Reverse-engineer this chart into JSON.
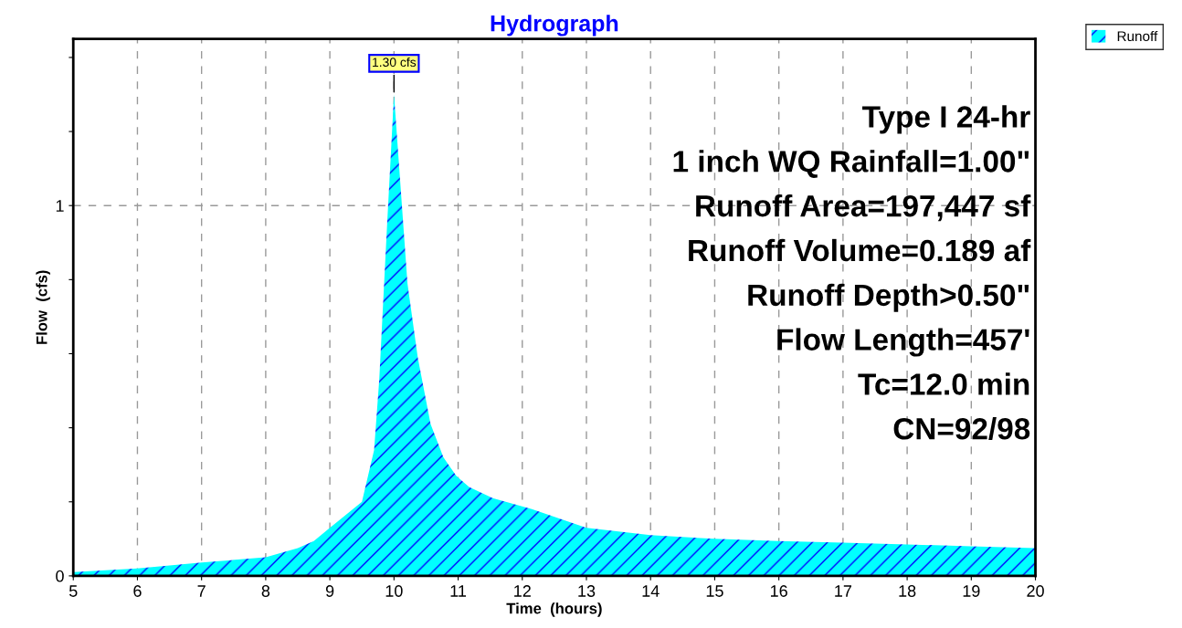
{
  "chart_data": {
    "type": "area",
    "title": "Hydrograph",
    "xlabel": "Time  (hours)",
    "ylabel": "Flow  (cfs)",
    "x": [
      5,
      6,
      7,
      8,
      8.5,
      8.75,
      9,
      9.36,
      9.5,
      9.69,
      9.77,
      9.89,
      10.0,
      10.21,
      10.37,
      10.57,
      10.77,
      10.97,
      11.17,
      11.54,
      12.15,
      13,
      14,
      15,
      16,
      17,
      18,
      19,
      20
    ],
    "series": [
      {
        "name": "Runoff",
        "color": "#00ffff",
        "values": [
          0.01,
          0.02,
          0.036,
          0.05,
          0.075,
          0.094,
          0.13,
          0.18,
          0.2,
          0.34,
          0.53,
          0.94,
          1.3,
          0.79,
          0.59,
          0.41,
          0.32,
          0.27,
          0.24,
          0.21,
          0.18,
          0.13,
          0.11,
          0.1,
          0.094,
          0.09,
          0.085,
          0.08,
          0.075
        ]
      }
    ],
    "xlim": [
      5,
      20
    ],
    "ylim": [
      0,
      1.45
    ],
    "xticks": [
      5,
      6,
      7,
      8,
      9,
      10,
      11,
      12,
      13,
      14,
      15,
      16,
      17,
      18,
      19,
      20
    ],
    "yticks": [
      0,
      {
        "value": 0.2,
        "label": null
      },
      {
        "value": 0.4,
        "label": null
      },
      {
        "value": 0.6,
        "label": null
      },
      {
        "value": 0.8,
        "label": null
      },
      1,
      {
        "value": 1.2,
        "label": null
      },
      {
        "value": 1.4,
        "label": null
      }
    ],
    "annotations": [
      {
        "text": "1.30 cfs",
        "x": 10.0,
        "y": 1.3
      },
      "Type I 24-hr",
      "1 inch WQ Rainfall=1.00\"",
      "Runoff Area=197,447 sf",
      "Runoff Volume=0.189 af",
      "Runoff Depth>0.50\"",
      "Flow Length=457'",
      "Tc=12.0 min",
      "CN=92/98"
    ],
    "grid": true,
    "legend": "top right"
  }
}
